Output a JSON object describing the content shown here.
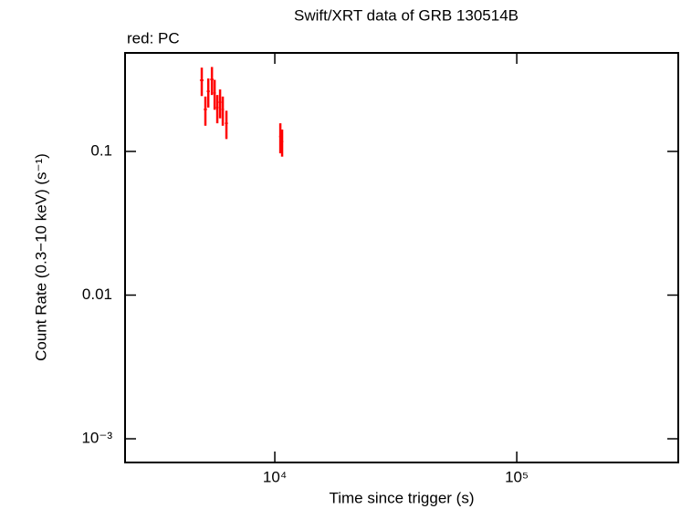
{
  "chart_data": {
    "type": "scatter",
    "title": "Swift/XRT data of GRB 130514B",
    "annotation": "red: PC",
    "x_label": "Time since trigger (s)",
    "y_label": "Count Rate (0.3−10 keV) (s⁻¹)",
    "xscale": "log",
    "yscale": "log",
    "xlim": [
      2405,
      465000
    ],
    "ylim": [
      0.000684,
      0.485
    ],
    "xticks": [
      {
        "value": 10000,
        "label": "10⁴"
      },
      {
        "value": 100000,
        "label": "10⁵"
      }
    ],
    "yticks": [
      {
        "value": 0.001,
        "label": "10⁻³"
      },
      0.01,
      0.1
    ],
    "color": "#ff0000",
    "x": [
      4990,
      5165,
      5310,
      5497,
      5640,
      5785,
      5940,
      6095,
      6310,
      10540,
      10720
    ],
    "xerr": [
      90,
      80,
      80,
      90,
      70,
      70,
      80,
      70,
      90,
      120,
      120
    ],
    "values": [
      0.313,
      0.196,
      0.262,
      0.317,
      0.255,
      0.202,
      0.22,
      0.196,
      0.157,
      0.127,
      0.117
    ],
    "yerr": [
      0.07,
      0.045,
      0.06,
      0.07,
      0.06,
      0.045,
      0.05,
      0.045,
      0.035,
      0.03,
      0.025
    ]
  }
}
